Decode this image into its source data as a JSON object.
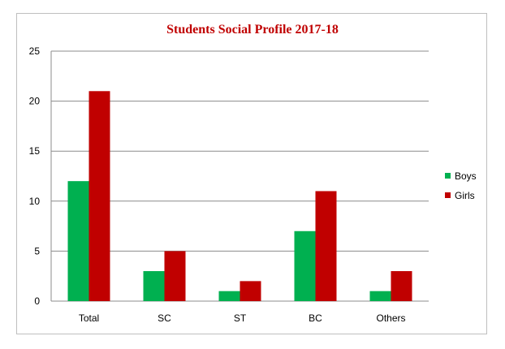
{
  "chart_data": {
    "type": "bar",
    "title": "Students Social Profile 2017-18",
    "xlabel": "",
    "ylabel": "",
    "categories": [
      "Total",
      "SC",
      "ST",
      "BC",
      "Others"
    ],
    "series": [
      {
        "name": "Boys",
        "values": [
          12,
          3,
          1,
          7,
          1
        ],
        "color": "#00b050"
      },
      {
        "name": "Girls",
        "values": [
          21,
          5,
          2,
          11,
          3
        ],
        "color": "#c00000"
      }
    ],
    "ylim": [
      0,
      25
    ],
    "yticks": [
      "0",
      "5",
      "10",
      "15",
      "20",
      "25"
    ],
    "grid": true,
    "legend_position": "right"
  },
  "colors": {
    "gridline": "#8c8c8c",
    "axis": "#8c8c8c",
    "title": "#c00000"
  }
}
